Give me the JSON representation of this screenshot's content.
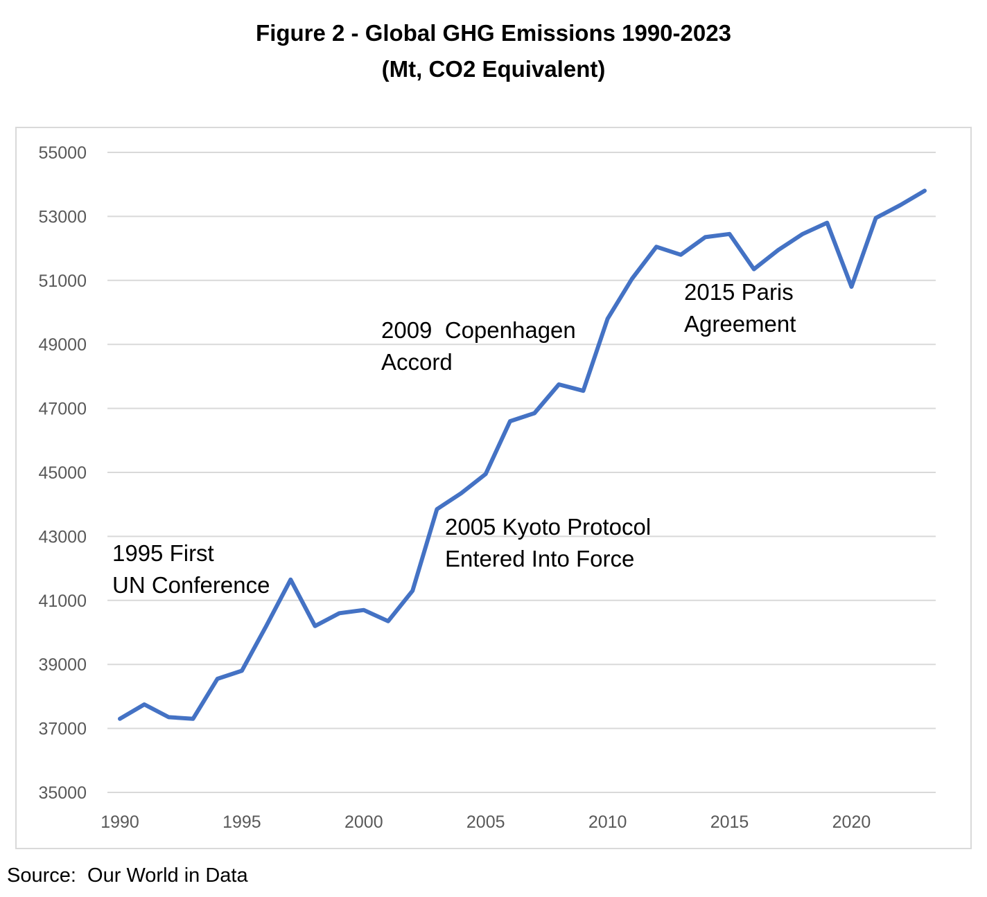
{
  "chart_data": {
    "type": "line",
    "title": "Figure 2 - Global GHG Emissions 1990-2023",
    "subtitle": "(Mt, CO2 Equivalent)",
    "xlabel": "",
    "ylabel": "",
    "xlim": [
      1990,
      2023
    ],
    "ylim": [
      35000,
      55000
    ],
    "grid": true,
    "legend": "none",
    "series_color": "#4472c4",
    "x_ticks": [
      "1990",
      "1995",
      "2000",
      "2005",
      "2010",
      "2015",
      "2020"
    ],
    "y_ticks": [
      "55000",
      "53000",
      "51000",
      "49000",
      "47000",
      "45000",
      "43000",
      "41000",
      "39000",
      "37000",
      "35000"
    ],
    "x": [
      1990,
      1991,
      1992,
      1993,
      1994,
      1995,
      1996,
      1997,
      1998,
      1999,
      2000,
      2001,
      2002,
      2003,
      2004,
      2005,
      2006,
      2007,
      2008,
      2009,
      2010,
      2011,
      2012,
      2013,
      2014,
      2015,
      2016,
      2017,
      2018,
      2019,
      2020,
      2021,
      2022,
      2023
    ],
    "series": [
      {
        "values": [
          37300,
          37750,
          37350,
          37300,
          38550,
          38800,
          40200,
          41650,
          40200,
          40600,
          40700,
          40350,
          41300,
          43850,
          44350,
          44950,
          46600,
          46850,
          47750,
          47550,
          49800,
          51050,
          52050,
          51800,
          52350,
          52450,
          51350,
          51950,
          52450,
          52800,
          50800,
          52950,
          53350,
          53800
        ]
      }
    ],
    "annotations": [
      {
        "lines": [
          "1995 First",
          "UN Conference"
        ]
      },
      {
        "lines": [
          "2005 Kyoto Protocol",
          "Entered Into Force"
        ]
      },
      {
        "lines": [
          "2009  Copenhagen",
          "Accord"
        ]
      },
      {
        "lines": [
          "2015 Paris",
          "Agreement"
        ]
      }
    ]
  },
  "source": "Source:  Our World in Data"
}
